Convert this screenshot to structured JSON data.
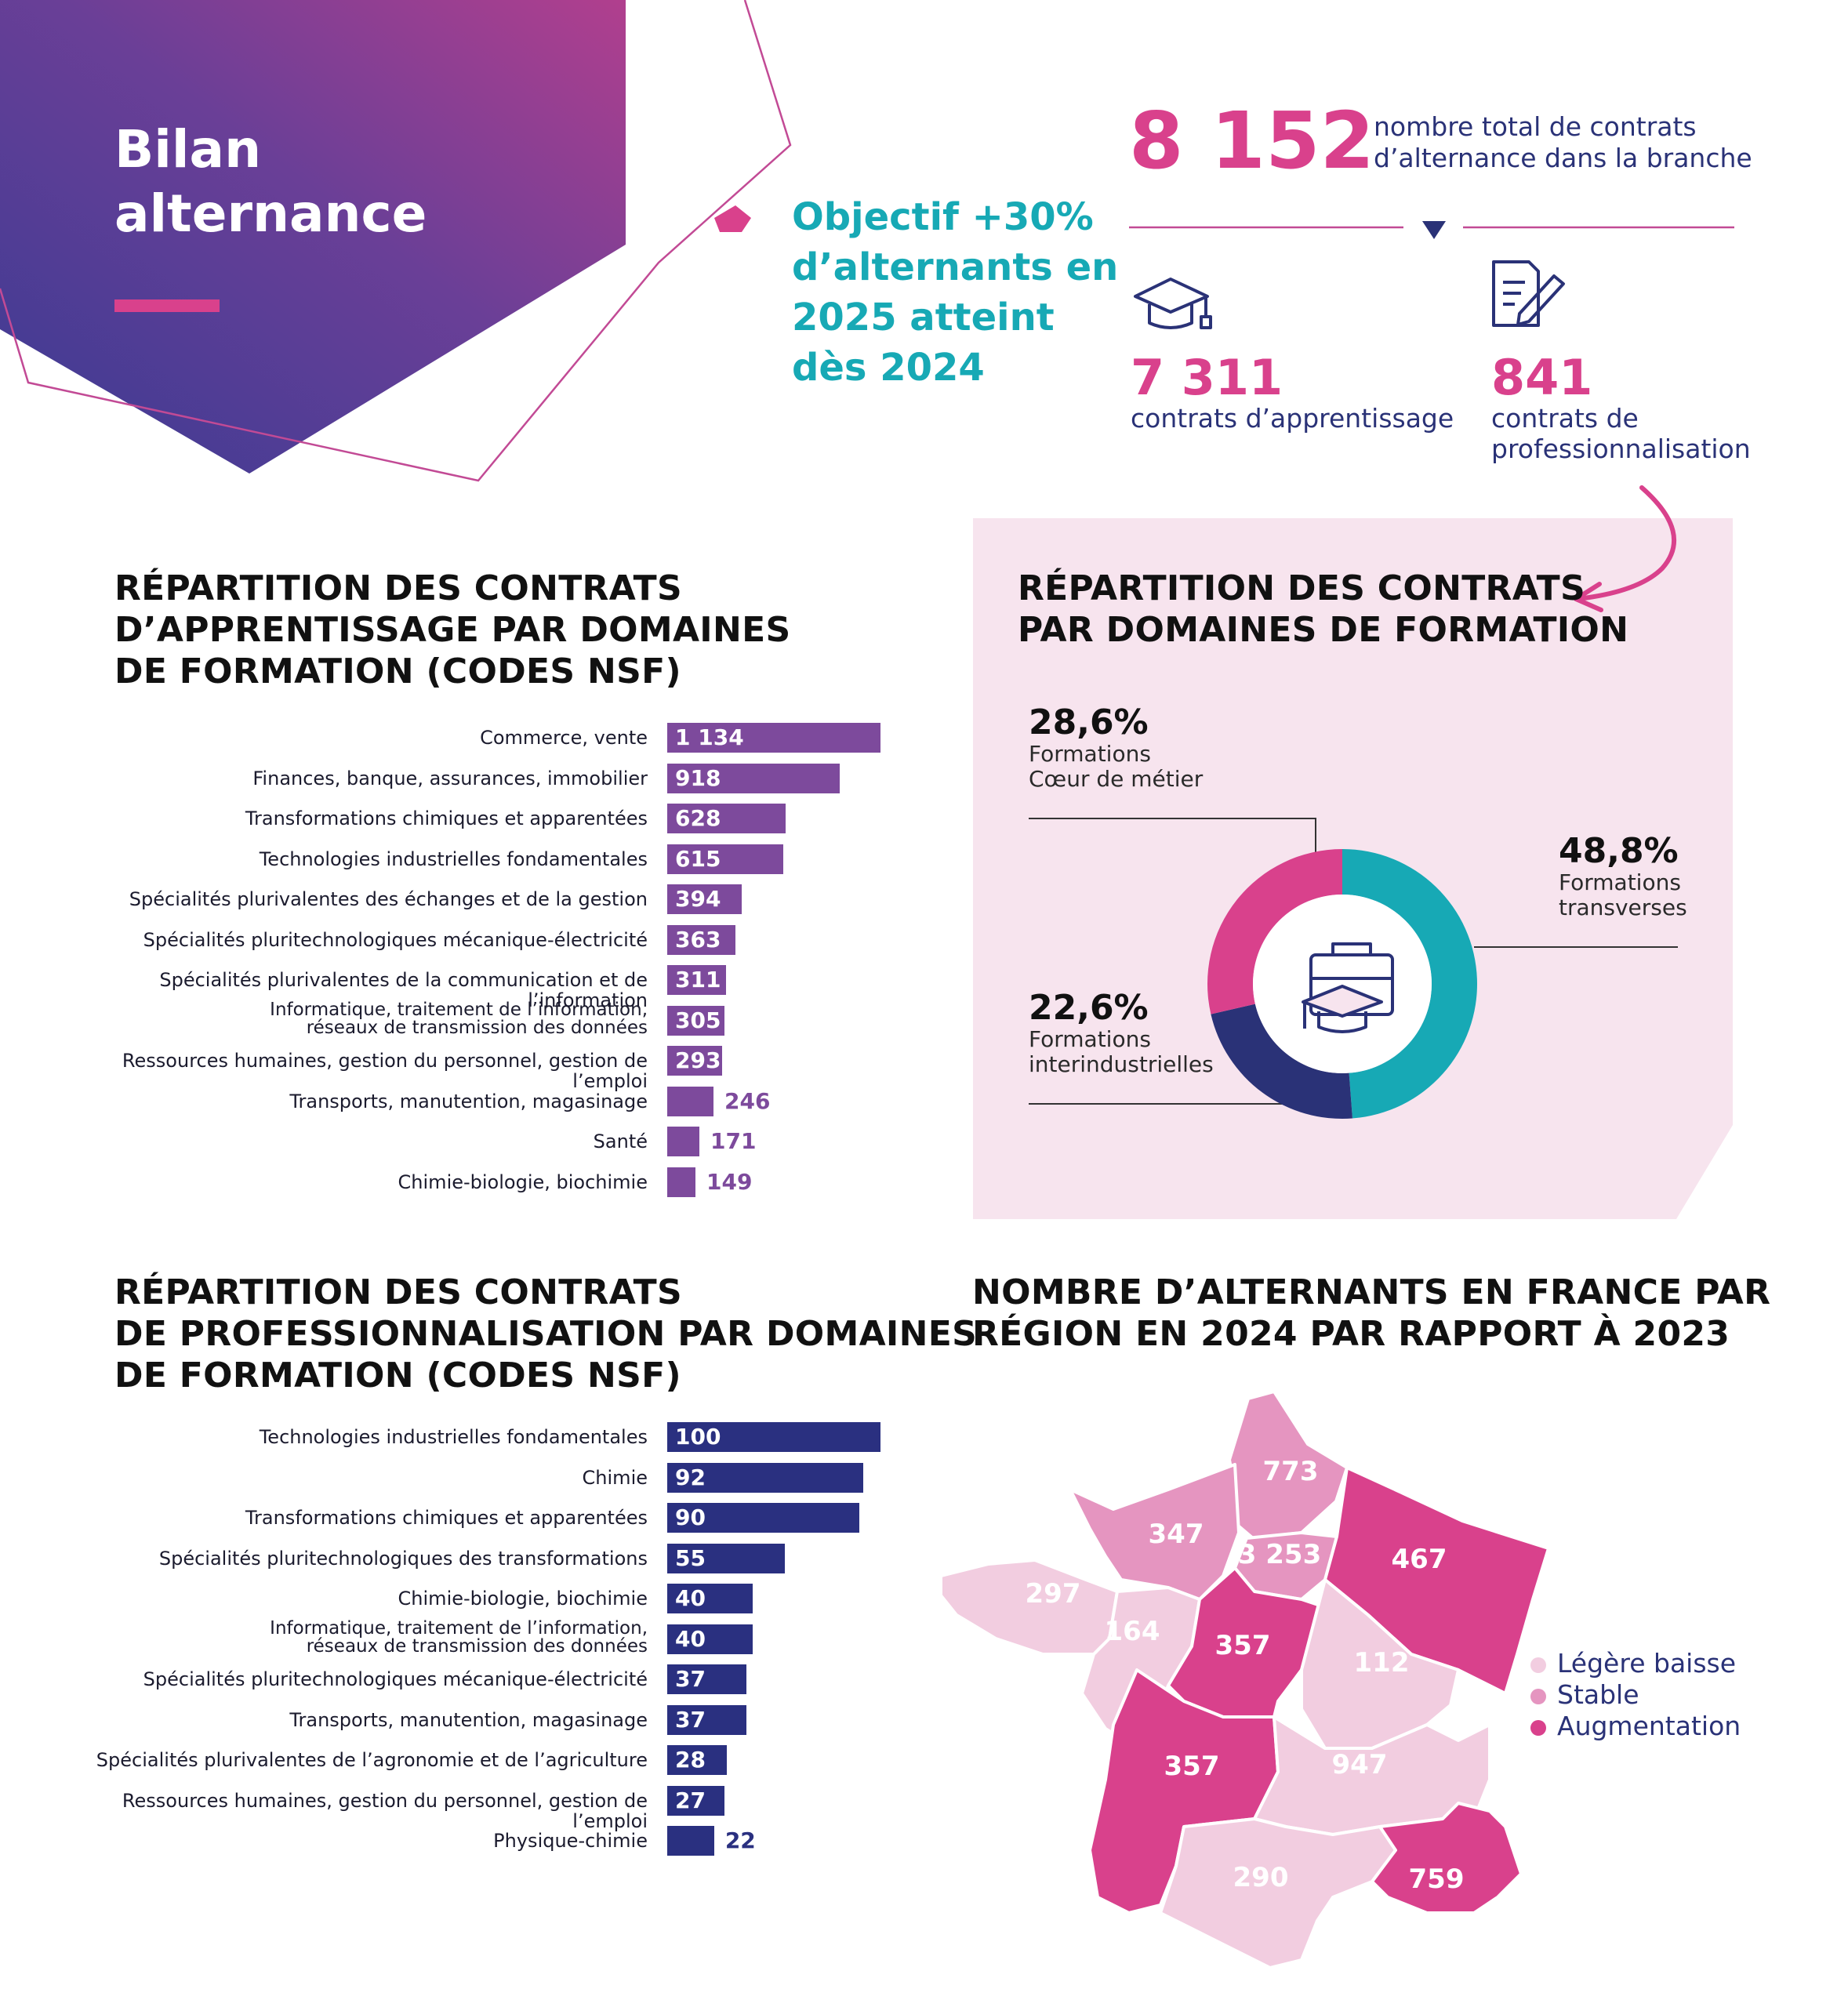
{
  "header": {
    "title_line1": "Bilan",
    "title_line2": "alternance",
    "objective": [
      "Objectif +30%",
      "d’alternants en",
      "2025 atteint",
      "dès 2024"
    ]
  },
  "totals": {
    "total_value": "8 152",
    "total_desc_line1": "nombre total de contrats",
    "total_desc_line2": "d’alternance dans la branche",
    "apprentissage_value": "7 311",
    "apprentissage_label": "contrats d’apprentissage",
    "pro_value": "841",
    "pro_label_line1": "contrats de",
    "pro_label_line2": "professionnalisation"
  },
  "icons": [
    "graduation-cap-icon",
    "document-pen-icon",
    "briefcase-graduation-icon",
    "curved-arrow-icon"
  ],
  "colors": {
    "purple_bar": "#7d4a9c",
    "navy_bar": "#2a3080",
    "pink": "#d9418c",
    "teal": "#17a9b5",
    "navy": "#2a3277"
  },
  "chart_data": [
    {
      "type": "bar",
      "orientation": "horizontal",
      "title": "RÉPARTITION DES CONTRATS D’APPRENTISSAGE PAR DOMAINES DE FORMATION (CODES NSF)",
      "title_lines": [
        "RÉPARTITION DES CONTRATS",
        "D’APPRENTISSAGE PAR DOMAINES",
        "DE FORMATION (CODES NSF)"
      ],
      "categories": [
        [
          "Commerce, vente"
        ],
        [
          "Finances, banque, assurances, immobilier"
        ],
        [
          "Transformations chimiques et apparentées"
        ],
        [
          "Technologies industrielles fondamentales"
        ],
        [
          "Spécialités plurivalentes des échanges et de la gestion"
        ],
        [
          "Spécialités pluritechnologiques mécanique-électricité"
        ],
        [
          "Spécialités plurivalentes de la communication et de l’information"
        ],
        [
          "Informatique, traitement de l’information,",
          "réseaux de transmission des données"
        ],
        [
          "Ressources humaines, gestion du personnel, gestion de l’emploi"
        ],
        [
          "Transports, manutention, magasinage"
        ],
        [
          "Santé"
        ],
        [
          "Chimie-biologie, biochimie"
        ]
      ],
      "values": [
        1134,
        918,
        628,
        615,
        394,
        363,
        311,
        305,
        293,
        246,
        171,
        149
      ],
      "value_labels": [
        "1 134",
        "918",
        "628",
        "615",
        "394",
        "363",
        "311",
        "305",
        "293",
        "246",
        "171",
        "149"
      ],
      "xlim": [
        0,
        1134
      ]
    },
    {
      "type": "pie",
      "title": "RÉPARTITION DES CONTRATS PAR DOMAINES DE FORMATION",
      "title_lines": [
        "RÉPARTITION DES CONTRATS",
        "PAR DOMAINES DE FORMATION"
      ],
      "slices": [
        {
          "name_lines": [
            "Formations",
            "transverses"
          ],
          "value": 48.8,
          "label": "48,8%",
          "color": "#17a9b5"
        },
        {
          "name_lines": [
            "Formations",
            "interindustrielles"
          ],
          "value": 22.6,
          "label": "22,6%",
          "color": "#2a3277"
        },
        {
          "name_lines": [
            "Formations",
            "Cœur de métier"
          ],
          "value": 28.6,
          "label": "28,6%",
          "color": "#d9418c"
        }
      ]
    },
    {
      "type": "bar",
      "orientation": "horizontal",
      "title": "RÉPARTITION DES CONTRATS DE PROFESSIONNALISATION PAR DOMAINES DE FORMATION (CODES NSF)",
      "title_lines": [
        "RÉPARTITION DES CONTRATS",
        "DE PROFESSIONNALISATION PAR DOMAINES",
        "DE FORMATION (CODES NSF)"
      ],
      "categories": [
        [
          "Technologies industrielles fondamentales"
        ],
        [
          "Chimie"
        ],
        [
          "Transformations chimiques et apparentées"
        ],
        [
          "Spécialités pluritechnologiques des transformations"
        ],
        [
          "Chimie-biologie, biochimie"
        ],
        [
          "Informatique, traitement de l’information,",
          "réseaux de transmission des données"
        ],
        [
          "Spécialités pluritechnologiques mécanique-électricité"
        ],
        [
          "Transports, manutention, magasinage"
        ],
        [
          "Spécialités plurivalentes de l’agronomie et de l’agriculture"
        ],
        [
          "Ressources humaines, gestion du personnel, gestion de l’emploi"
        ],
        [
          "Physique-chimie"
        ]
      ],
      "values": [
        100,
        92,
        90,
        55,
        40,
        40,
        37,
        37,
        28,
        27,
        22
      ],
      "value_labels": [
        "100",
        "92",
        "90",
        "55",
        "40",
        "40",
        "37",
        "37",
        "28",
        "27",
        "22"
      ],
      "xlim": [
        0,
        100
      ]
    },
    {
      "type": "map",
      "title": "NOMBRE D’ALTERNANTS EN FRANCE PAR RÉGION EN 2024 PAR RAPPORT À 2023",
      "title_lines": [
        "NOMBRE D’ALTERNANTS EN FRANCE PAR",
        "RÉGION EN 2024 PAR RAPPORT À 2023"
      ],
      "legend": [
        {
          "label": "Légère baisse",
          "color": "#f2cde0"
        },
        {
          "label": "Stable",
          "color": "#e595c0"
        },
        {
          "label": "Augmentation",
          "color": "#d9418c"
        }
      ],
      "regions": [
        {
          "name": "Hauts-de-France",
          "value": "773",
          "status": "Stable"
        },
        {
          "name": "Normandie",
          "value": "347",
          "status": "Stable"
        },
        {
          "name": "Île-de-France",
          "value": "3 253",
          "status": "Stable"
        },
        {
          "name": "Grand Est",
          "value": "467",
          "status": "Augmentation"
        },
        {
          "name": "Bretagne",
          "value": "297",
          "status": "Légère baisse"
        },
        {
          "name": "Pays de la Loire",
          "value": "164",
          "status": "Légère baisse"
        },
        {
          "name": "Centre-Val de Loire",
          "value": "357",
          "status": "Augmentation"
        },
        {
          "name": "Bourgogne-Franche-Comté",
          "value": "112",
          "status": "Légère baisse"
        },
        {
          "name": "Nouvelle-Aquitaine",
          "value": "357",
          "status": "Augmentation"
        },
        {
          "name": "Auvergne-Rhône-Alpes",
          "value": "947",
          "status": "Légère baisse"
        },
        {
          "name": "Occitanie",
          "value": "290",
          "status": "Légère baisse"
        },
        {
          "name": "Provence-Alpes-Côte d’Azur",
          "value": "759",
          "status": "Augmentation"
        }
      ]
    }
  ]
}
